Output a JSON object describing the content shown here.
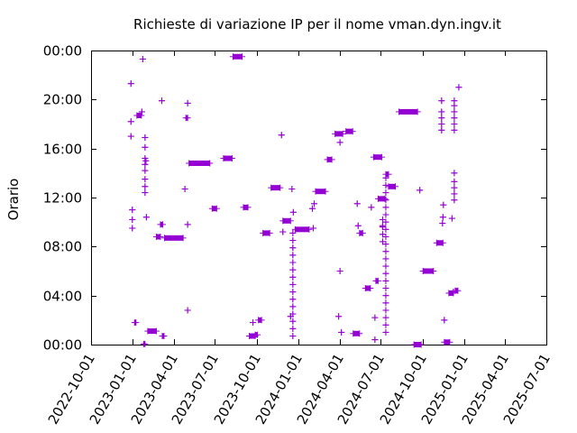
{
  "chart_data": {
    "type": "scatter",
    "title": "Richieste di variazione IP per il nome vman.dyn.ingv.it",
    "xlabel": "",
    "ylabel": "Orario",
    "x_ticks": [
      "2022-10-01",
      "2023-01-01",
      "2023-04-01",
      "2023-07-01",
      "2023-10-01",
      "2024-01-01",
      "2024-04-01",
      "2024-07-01",
      "2024-10-01",
      "2025-01-01",
      "2025-04-01",
      "2025-07-01"
    ],
    "y_ticks": [
      "00:00",
      "04:00",
      "08:00",
      "12:00",
      "16:00",
      "20:00",
      "00:00"
    ],
    "xlim": [
      "2022-10-01",
      "2025-07-01"
    ],
    "ylim_hours": [
      0,
      24
    ],
    "grid": false,
    "marker": "+",
    "color": "#9400d3",
    "clusters": [
      {
        "x": "2022-12-28",
        "y": 17.0
      },
      {
        "x": "2022-12-28",
        "y": 18.2
      },
      {
        "x": "2022-12-28",
        "y": 21.3
      },
      {
        "x": "2022-12-31",
        "y": 9.5
      },
      {
        "x": "2022-12-31",
        "y": 10.2
      },
      {
        "x": "2022-12-31",
        "y": 11.0
      },
      {
        "x": "2023-01-05",
        "x2": "2023-01-08",
        "y": 1.8
      },
      {
        "x": "2023-01-10",
        "x2": "2023-01-20",
        "y": 18.7
      },
      {
        "x": "2023-01-21",
        "y": 19.0
      },
      {
        "x": "2023-01-23",
        "y": 23.3
      },
      {
        "x": "2023-01-25",
        "x2": "2023-01-28",
        "y": 0.05
      },
      {
        "x": "2023-01-28",
        "y": 12.4
      },
      {
        "x": "2023-01-28",
        "y": 12.9
      },
      {
        "x": "2023-01-28",
        "y": 13.5
      },
      {
        "x": "2023-01-28",
        "y": 14.2
      },
      {
        "x": "2023-01-28",
        "y": 14.7
      },
      {
        "x": "2023-01-28",
        "y": 15.2
      },
      {
        "x": "2023-01-28",
        "y": 16.1
      },
      {
        "x": "2023-01-28",
        "y": 16.9
      },
      {
        "x": "2023-01-30",
        "y": 15.0
      },
      {
        "x": "2023-01-31",
        "y": 10.4
      },
      {
        "x": "2023-02-03",
        "x2": "2023-02-22",
        "y": 1.1
      },
      {
        "x": "2023-02-22",
        "x2": "2023-03-03",
        "y": 8.8
      },
      {
        "x": "2023-03-03",
        "x2": "2023-03-08",
        "y": 9.8
      },
      {
        "x": "2023-03-06",
        "y": 19.9
      },
      {
        "x": "2023-03-07",
        "x2": "2023-03-11",
        "y": 0.7
      },
      {
        "x": "2023-03-12",
        "x2": "2023-04-22",
        "y": 8.7
      },
      {
        "x": "2023-04-26",
        "y": 12.7
      },
      {
        "x": "2023-04-28",
        "x2": "2023-05-02",
        "y": 18.5
      },
      {
        "x": "2023-05-02",
        "y": 19.7
      },
      {
        "x": "2023-05-02",
        "y": 2.8
      },
      {
        "x": "2023-05-02",
        "y": 9.8
      },
      {
        "x": "2023-05-05",
        "x2": "2023-06-20",
        "y": 14.8
      },
      {
        "x": "2023-06-25",
        "x2": "2023-07-05",
        "y": 11.1
      },
      {
        "x": "2023-07-20",
        "x2": "2023-08-08",
        "y": 15.2
      },
      {
        "x": "2023-08-10",
        "x2": "2023-08-30",
        "y": 23.5
      },
      {
        "x": "2023-09-02",
        "x2": "2023-09-12",
        "y": 11.2
      },
      {
        "x": "2023-09-15",
        "x2": "2023-09-28",
        "y": 0.7
      },
      {
        "x": "2023-09-23",
        "y": 1.8
      },
      {
        "x": "2023-09-28",
        "x2": "2023-10-03",
        "y": 0.8
      },
      {
        "x": "2023-10-05",
        "x2": "2023-10-12",
        "y": 2.0
      },
      {
        "x": "2023-10-15",
        "x2": "2023-10-30",
        "y": 9.1
      },
      {
        "x": "2023-11-02",
        "x2": "2023-11-22",
        "y": 12.8
      },
      {
        "x": "2023-11-25",
        "y": 17.1
      },
      {
        "x": "2023-11-28",
        "y": 9.2
      },
      {
        "x": "2023-11-28",
        "x2": "2023-12-15",
        "y": 10.1
      },
      {
        "x": "2023-12-15",
        "y": 2.3
      },
      {
        "x": "2023-12-18",
        "y": 12.7
      },
      {
        "x": "2023-12-21",
        "y": 10.8
      },
      {
        "x": "2023-12-20",
        "y": 0.7
      },
      {
        "x": "2023-12-20",
        "y": 1.3
      },
      {
        "x": "2023-12-20",
        "y": 1.9
      },
      {
        "x": "2023-12-20",
        "y": 2.5
      },
      {
        "x": "2023-12-20",
        "y": 3.1
      },
      {
        "x": "2023-12-20",
        "y": 3.7
      },
      {
        "x": "2023-12-20",
        "y": 4.3
      },
      {
        "x": "2023-12-20",
        "y": 4.9
      },
      {
        "x": "2023-12-20",
        "y": 5.5
      },
      {
        "x": "2023-12-20",
        "y": 6.1
      },
      {
        "x": "2023-12-20",
        "y": 6.7
      },
      {
        "x": "2023-12-20",
        "y": 7.3
      },
      {
        "x": "2023-12-20",
        "y": 7.9
      },
      {
        "x": "2023-12-20",
        "y": 8.5
      },
      {
        "x": "2023-12-20",
        "y": 9.1
      },
      {
        "x": "2023-12-25",
        "x2": "2024-01-25",
        "y": 9.4
      },
      {
        "x": "2024-02-01",
        "y": 11.1
      },
      {
        "x": "2024-02-03",
        "y": 9.5
      },
      {
        "x": "2024-02-05",
        "y": 11.5
      },
      {
        "x": "2024-02-08",
        "x2": "2024-03-01",
        "y": 12.5
      },
      {
        "x": "2024-03-05",
        "x2": "2024-03-15",
        "y": 15.1
      },
      {
        "x": "2024-03-22",
        "x2": "2024-04-08",
        "y": 17.2
      },
      {
        "x": "2024-03-30",
        "y": 2.3
      },
      {
        "x": "2024-04-02",
        "y": 6.0
      },
      {
        "x": "2024-04-02",
        "y": 16.5
      },
      {
        "x": "2024-04-05",
        "y": 1.0
      },
      {
        "x": "2024-04-15",
        "x2": "2024-04-30",
        "y": 17.4
      },
      {
        "x": "2024-05-01",
        "x2": "2024-05-15",
        "y": 0.9
      },
      {
        "x": "2024-05-10",
        "y": 11.5
      },
      {
        "x": "2024-05-12",
        "y": 9.7
      },
      {
        "x": "2024-05-15",
        "x2": "2024-05-22",
        "y": 9.1
      },
      {
        "x": "2024-05-28",
        "x2": "2024-06-08",
        "y": 4.6
      },
      {
        "x": "2024-06-10",
        "y": 11.2
      },
      {
        "x": "2024-06-15",
        "x2": "2024-07-03",
        "y": 15.3
      },
      {
        "x": "2024-06-18",
        "y": 2.2
      },
      {
        "x": "2024-06-18",
        "y": 0.4
      },
      {
        "x": "2024-06-20",
        "x2": "2024-06-25",
        "y": 5.2
      },
      {
        "x": "2024-06-25",
        "x2": "2024-07-10",
        "y": 11.9
      },
      {
        "x": "2024-07-05",
        "y": 9.7
      },
      {
        "x": "2024-07-05",
        "y": 8.4
      },
      {
        "x": "2024-07-05",
        "y": 9.0
      },
      {
        "x": "2024-07-05",
        "y": 9.6
      },
      {
        "x": "2024-07-05",
        "y": 10.2
      },
      {
        "x": "2024-07-12",
        "y": 1.0
      },
      {
        "x": "2024-07-12",
        "y": 1.6
      },
      {
        "x": "2024-07-12",
        "y": 2.2
      },
      {
        "x": "2024-07-12",
        "y": 2.8
      },
      {
        "x": "2024-07-12",
        "y": 3.4
      },
      {
        "x": "2024-07-12",
        "y": 4.0
      },
      {
        "x": "2024-07-12",
        "y": 4.6
      },
      {
        "x": "2024-07-12",
        "y": 5.2
      },
      {
        "x": "2024-07-12",
        "y": 5.8
      },
      {
        "x": "2024-07-12",
        "y": 6.4
      },
      {
        "x": "2024-07-12",
        "y": 7.0
      },
      {
        "x": "2024-07-12",
        "y": 7.6
      },
      {
        "x": "2024-07-12",
        "y": 8.2
      },
      {
        "x": "2024-07-12",
        "y": 8.8
      },
      {
        "x": "2024-07-12",
        "y": 9.4
      },
      {
        "x": "2024-07-12",
        "y": 10.0
      },
      {
        "x": "2024-07-12",
        "y": 10.6
      },
      {
        "x": "2024-07-12",
        "y": 11.2
      },
      {
        "x": "2024-07-12",
        "y": 11.8
      },
      {
        "x": "2024-07-12",
        "y": 12.4
      },
      {
        "x": "2024-07-12",
        "y": 13.0
      },
      {
        "x": "2024-07-12",
        "y": 13.6
      },
      {
        "x": "2024-07-12",
        "x2": "2024-07-18",
        "y": 13.9
      },
      {
        "x": "2024-07-18",
        "x2": "2024-08-02",
        "y": 12.9
      },
      {
        "x": "2024-08-10",
        "x2": "2024-09-20",
        "y": 19.0
      },
      {
        "x": "2024-09-25",
        "y": 12.6
      },
      {
        "x": "2024-09-12",
        "x2": "2024-09-28",
        "y": 0.0
      },
      {
        "x": "2024-10-02",
        "x2": "2024-10-25",
        "y": 6.0
      },
      {
        "x": "2024-11-01",
        "x2": "2024-11-15",
        "y": 8.3
      },
      {
        "x": "2024-11-12",
        "y": 19.9
      },
      {
        "x": "2024-11-12",
        "y": 17.5
      },
      {
        "x": "2024-11-12",
        "y": 18.0
      },
      {
        "x": "2024-11-12",
        "y": 18.5
      },
      {
        "x": "2024-11-12",
        "y": 19.0
      },
      {
        "x": "2024-11-15",
        "y": 10.4
      },
      {
        "x": "2024-11-16",
        "y": 11.4
      },
      {
        "x": "2024-11-14",
        "y": 9.9
      },
      {
        "x": "2024-11-18",
        "y": 2.0
      },
      {
        "x": "2024-11-18",
        "x2": "2024-11-30",
        "y": 0.2
      },
      {
        "x": "2024-11-28",
        "x2": "2024-12-08",
        "y": 4.2
      },
      {
        "x": "2024-12-05",
        "y": 10.3
      },
      {
        "x": "2024-12-08",
        "y": 4.3
      },
      {
        "x": "2024-12-10",
        "y": 19.9
      },
      {
        "x": "2024-12-10",
        "y": 17.5
      },
      {
        "x": "2024-12-10",
        "y": 18.0
      },
      {
        "x": "2024-12-10",
        "y": 18.5
      },
      {
        "x": "2024-12-10",
        "y": 19.0
      },
      {
        "x": "2024-12-10",
        "y": 19.5
      },
      {
        "x": "2024-12-10",
        "y": 11.8
      },
      {
        "x": "2024-12-10",
        "y": 12.3
      },
      {
        "x": "2024-12-10",
        "y": 12.8
      },
      {
        "x": "2024-12-10",
        "y": 13.3
      },
      {
        "x": "2024-12-10",
        "y": 14.0
      },
      {
        "x": "2024-12-12",
        "x2": "2024-12-18",
        "y": 4.4
      },
      {
        "x": "2024-12-20",
        "y": 21.0
      }
    ]
  }
}
